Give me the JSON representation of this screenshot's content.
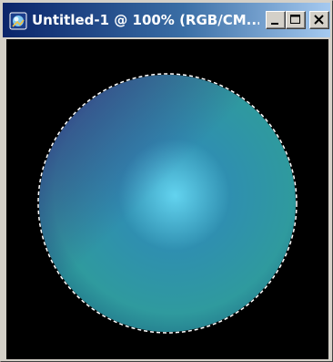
{
  "window": {
    "title": "Untitled-1 @ 100% (RGB/CM...",
    "app_icon": "photoshop-document-icon"
  },
  "controls": {
    "minimize_icon": "minimize-icon",
    "maximize_icon": "maximize-icon",
    "close_icon": "close-icon"
  },
  "canvas": {
    "background_color": "#000000",
    "sphere_colors": {
      "highlight": "#63d3ef",
      "mid": "#2f8fb0",
      "teal": "#2f9a9e",
      "shadow": "#3a2f85"
    },
    "selection": "dashed circular marquee"
  }
}
